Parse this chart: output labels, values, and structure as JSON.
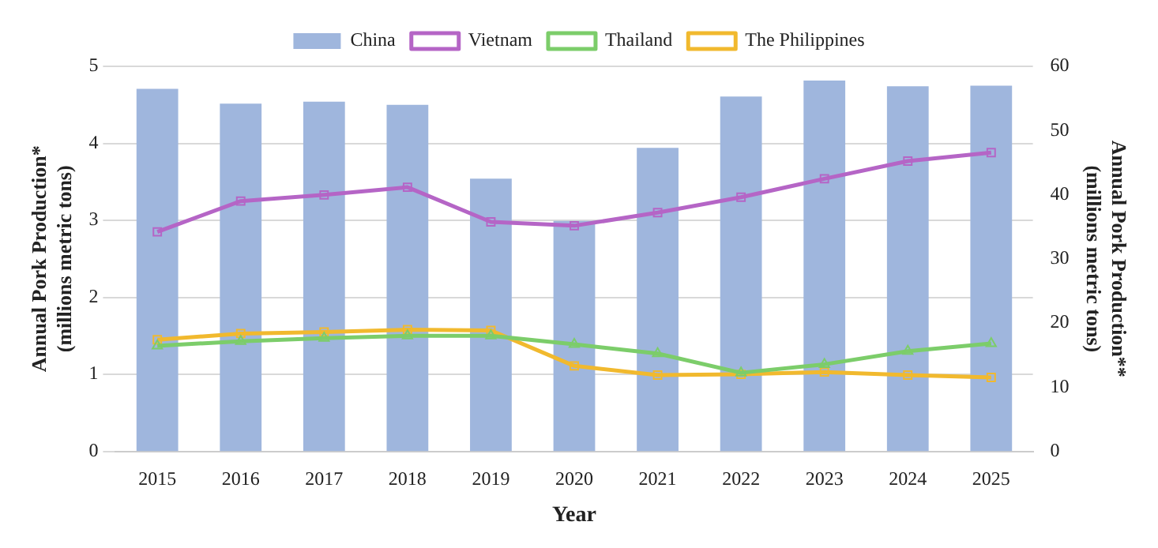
{
  "chart_data": {
    "type": "bar",
    "xlabel": "Year",
    "ylabel": "Annual Pork Production*\n(millions metric tons)",
    "y2label": "Annual Pork Production**\n(millions metric tons)",
    "categories": [
      "2015",
      "2016",
      "2017",
      "2018",
      "2019",
      "2020",
      "2021",
      "2022",
      "2023",
      "2024",
      "2025"
    ],
    "series": [
      {
        "name": "China",
        "axis": "y2",
        "color": "#9fb6dd",
        "values": [
          56.5,
          54.2,
          54.5,
          54.0,
          42.5,
          35.9,
          47.3,
          55.3,
          57.8,
          56.9,
          57.0
        ]
      },
      {
        "name": "Vietnam",
        "type": "line",
        "marker": "square",
        "color": "#b565c6",
        "values": [
          2.85,
          3.25,
          3.33,
          3.43,
          2.98,
          2.93,
          3.1,
          3.3,
          3.54,
          3.77,
          3.88
        ]
      },
      {
        "name": "Thailand",
        "type": "line",
        "marker": "triangle",
        "color": "#7ccd6a",
        "values": [
          1.37,
          1.43,
          1.47,
          1.5,
          1.5,
          1.39,
          1.27,
          1.02,
          1.13,
          1.3,
          1.4
        ]
      },
      {
        "name": "The Philippines",
        "type": "line",
        "marker": "square",
        "color": "#f1b92e",
        "values": [
          1.45,
          1.53,
          1.55,
          1.58,
          1.57,
          1.11,
          0.99,
          1.0,
          1.03,
          0.99,
          0.96
        ]
      }
    ],
    "ylim": [
      0,
      5
    ],
    "yticks": [
      0,
      1,
      2,
      3,
      4,
      5
    ],
    "y2lim": [
      0,
      60
    ],
    "y2ticks": [
      0,
      10,
      20,
      30,
      40,
      50,
      60
    ],
    "grid": "y",
    "legend": "top"
  }
}
